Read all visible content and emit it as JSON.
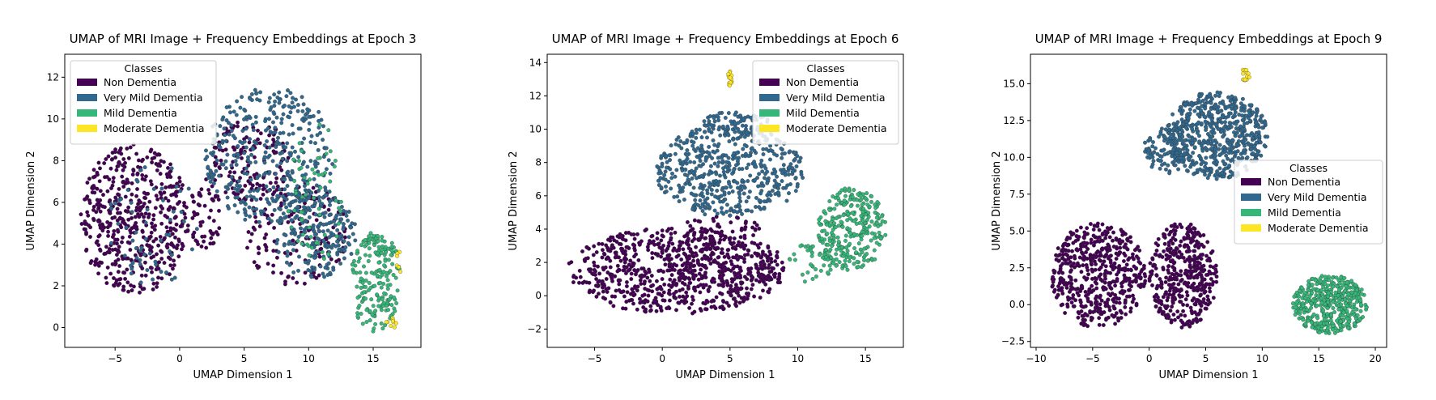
{
  "chart_data": [
    {
      "type": "scatter",
      "title": "UMAP of MRI Image + Frequency Embeddings at Epoch 3",
      "xlabel": "UMAP Dimension 1",
      "ylabel": "UMAP Dimension 2",
      "xlim": [
        -8.9,
        18.7
      ],
      "ylim": [
        -0.95,
        13.1
      ],
      "xticks": [
        -5,
        0,
        5,
        10,
        15
      ],
      "yticks": [
        0,
        2,
        4,
        6,
        8,
        10,
        12
      ],
      "legend": {
        "title": "Classes",
        "placement": "upper-left"
      },
      "series": [
        {
          "name": "Non Dementia",
          "color": "#440154",
          "clusters": [
            {
              "cx": -3.5,
              "cy": 5.2,
              "rx": 4.2,
              "ry": 3.6,
              "n": 520
            },
            {
              "cx": 2.0,
              "cy": 5.5,
              "rx": 1.2,
              "ry": 2.0,
              "n": 60
            },
            {
              "cx": 9.0,
              "cy": 4.5,
              "rx": 4.0,
              "ry": 2.5,
              "n": 150
            },
            {
              "cx": 5.5,
              "cy": 8.0,
              "rx": 3.0,
              "ry": 2.0,
              "n": 140
            }
          ]
        },
        {
          "name": "Very Mild Dementia",
          "color": "#31688e",
          "clusters": [
            {
              "cx": 7.0,
              "cy": 8.2,
              "rx": 5.0,
              "ry": 3.3,
              "n": 380
            },
            {
              "cx": 10.5,
              "cy": 4.5,
              "rx": 3.2,
              "ry": 2.2,
              "n": 220
            },
            {
              "cx": -2.0,
              "cy": 5.0,
              "rx": 3.5,
              "ry": 3.0,
              "n": 60
            }
          ]
        },
        {
          "name": "Mild Dementia",
          "color": "#35b779",
          "clusters": [
            {
              "cx": 15.2,
              "cy": 2.2,
              "rx": 2.0,
              "ry": 2.4,
              "n": 200
            },
            {
              "cx": 10.5,
              "cy": 6.5,
              "rx": 2.2,
              "ry": 3.5,
              "n": 60
            }
          ]
        },
        {
          "name": "Moderate Dementia",
          "color": "#fde725",
          "clusters": [
            {
              "cx": 16.3,
              "cy": 0.2,
              "rx": 0.5,
              "ry": 0.3,
              "n": 10
            },
            {
              "cx": 17.0,
              "cy": 3.2,
              "rx": 0.3,
              "ry": 0.6,
              "n": 6
            }
          ]
        }
      ]
    },
    {
      "type": "scatter",
      "title": "UMAP of MRI Image + Frequency Embeddings at Epoch 6",
      "xlabel": "UMAP Dimension 1",
      "ylabel": "UMAP Dimension 2",
      "xlim": [
        -8.5,
        17.8
      ],
      "ylim": [
        -3.1,
        14.5
      ],
      "xticks": [
        -5,
        0,
        5,
        10,
        15
      ],
      "yticks": [
        -2,
        0,
        2,
        4,
        6,
        8,
        10,
        12,
        14
      ],
      "legend": {
        "title": "Classes",
        "placement": "upper-right"
      },
      "series": [
        {
          "name": "Non Dementia",
          "color": "#440154",
          "clusters": [
            {
              "cx": 1.0,
              "cy": 1.5,
              "rx": 8.0,
              "ry": 2.6,
              "n": 720
            },
            {
              "cx": 4.0,
              "cy": 2.5,
              "rx": 4.5,
              "ry": 2.5,
              "n": 180
            }
          ]
        },
        {
          "name": "Very Mild Dementia",
          "color": "#31688e",
          "clusters": [
            {
              "cx": 5.0,
              "cy": 7.5,
              "rx": 5.5,
              "ry": 2.8,
              "n": 520
            },
            {
              "cx": 5.5,
              "cy": 10.3,
              "rx": 2.5,
              "ry": 0.8,
              "n": 80
            }
          ]
        },
        {
          "name": "Mild Dementia",
          "color": "#35b779",
          "clusters": [
            {
              "cx": 14.0,
              "cy": 4.0,
              "rx": 2.5,
              "ry": 2.5,
              "n": 300
            },
            {
              "cx": 11.0,
              "cy": 2.0,
              "rx": 1.8,
              "ry": 1.2,
              "n": 40
            }
          ]
        },
        {
          "name": "Moderate Dementia",
          "color": "#fde725",
          "clusters": [
            {
              "cx": 5.0,
              "cy": 13.0,
              "rx": 0.15,
              "ry": 0.6,
              "n": 14
            }
          ]
        }
      ]
    },
    {
      "type": "scatter",
      "title": "UMAP of MRI Image + Frequency Embeddings at Epoch 9",
      "xlabel": "UMAP Dimension 1",
      "ylabel": "UMAP Dimension 2",
      "xlim": [
        -10.5,
        21.0
      ],
      "ylim": [
        -2.9,
        17.0
      ],
      "xticks": [
        -10,
        -5,
        0,
        5,
        10,
        15,
        20
      ],
      "yticks": [
        -2.5,
        0.0,
        2.5,
        5.0,
        7.5,
        10.0,
        12.5,
        15.0
      ],
      "ytick_labels": [
        "−2.5",
        "0.0",
        "2.5",
        "5.0",
        "7.5",
        "10.0",
        "12.5",
        "15.0"
      ],
      "legend": {
        "title": "Classes",
        "placement": "center-right"
      },
      "series": [
        {
          "name": "Non Dementia",
          "color": "#440154",
          "clusters": [
            {
              "cx": -4.5,
              "cy": 2.0,
              "rx": 4.2,
              "ry": 3.6,
              "n": 520
            },
            {
              "cx": 3.0,
              "cy": 2.0,
              "rx": 3.0,
              "ry": 3.6,
              "n": 420
            }
          ]
        },
        {
          "name": "Very Mild Dementia",
          "color": "#31688e",
          "clusters": [
            {
              "cx": 6.0,
              "cy": 11.5,
              "rx": 4.5,
              "ry": 3.0,
              "n": 600
            },
            {
              "cx": 1.5,
              "cy": 10.5,
              "rx": 2.0,
              "ry": 1.6,
              "n": 100
            }
          ]
        },
        {
          "name": "Mild Dementia",
          "color": "#35b779",
          "clusters": [
            {
              "cx": 16.0,
              "cy": 0.0,
              "rx": 3.3,
              "ry": 2.0,
              "n": 450
            }
          ]
        },
        {
          "name": "Moderate Dementia",
          "color": "#fde725",
          "clusters": [
            {
              "cx": 8.5,
              "cy": 15.6,
              "rx": 0.4,
              "ry": 0.4,
              "n": 14
            }
          ]
        }
      ]
    }
  ]
}
